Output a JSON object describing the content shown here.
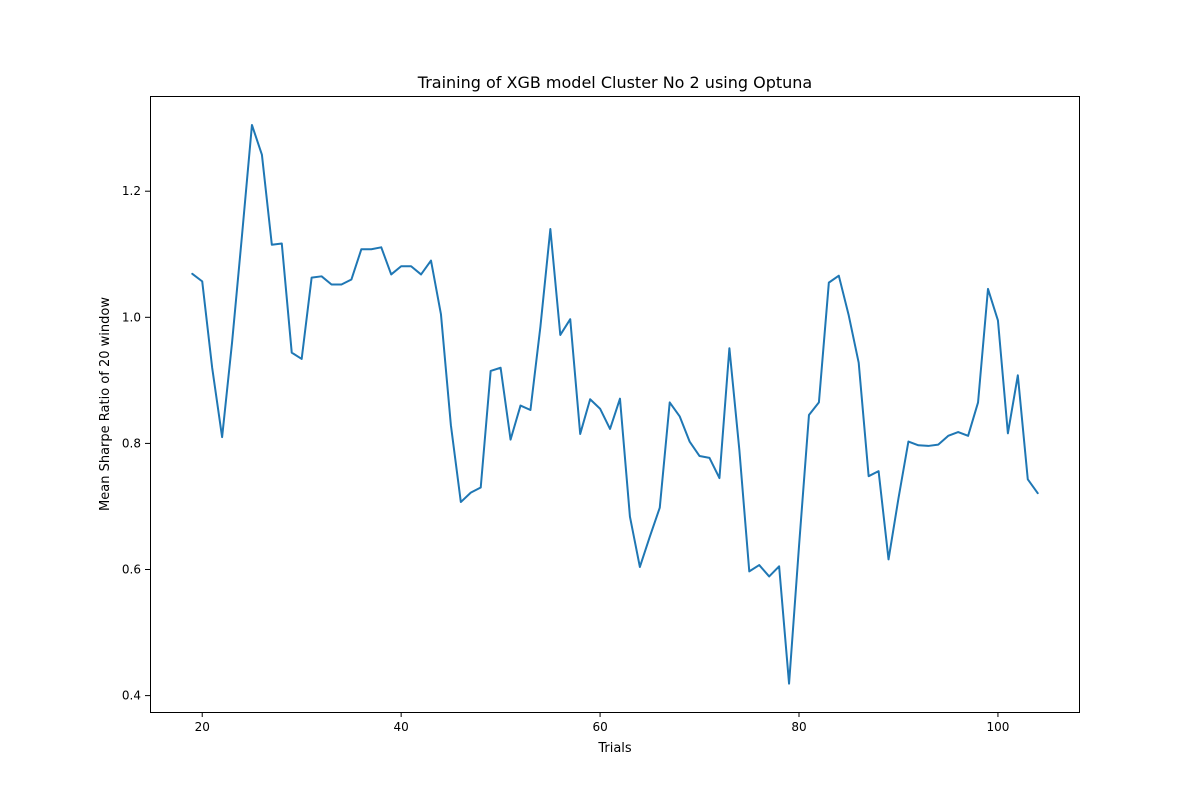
{
  "chart_data": {
    "type": "line",
    "title": "Training of XGB model Cluster No 2 using Optuna",
    "xlabel": "Trials",
    "ylabel": "Mean Sharpe Ratio of 20 window",
    "xlim": [
      14.75,
      108.25
    ],
    "ylim": [
      0.374,
      1.351
    ],
    "xticks": [
      20,
      40,
      60,
      80,
      100
    ],
    "yticks": [
      0.4,
      0.6,
      0.8,
      1.0,
      1.2
    ],
    "xtick_labels": [
      "20",
      "40",
      "60",
      "80",
      "100"
    ],
    "ytick_labels": [
      "0.4",
      "0.6",
      "0.8",
      "1.0",
      "1.2"
    ],
    "grid": false,
    "legend": "none",
    "series": [
      {
        "color": "#1f77b4",
        "x": [
          19,
          20,
          21,
          22,
          23,
          24,
          25,
          26,
          27,
          28,
          29,
          30,
          31,
          32,
          33,
          34,
          35,
          36,
          37,
          38,
          39,
          40,
          41,
          42,
          43,
          44,
          45,
          46,
          47,
          48,
          49,
          50,
          51,
          52,
          53,
          54,
          55,
          56,
          57,
          58,
          59,
          60,
          61,
          62,
          63,
          64,
          65,
          66,
          67,
          68,
          69,
          70,
          71,
          72,
          73,
          74,
          75,
          76,
          77,
          78,
          79,
          80,
          81,
          82,
          83,
          84,
          85,
          86,
          87,
          88,
          89,
          90,
          91,
          92,
          93,
          94,
          95,
          96,
          97,
          98,
          99,
          100,
          101,
          102,
          103,
          104
        ],
        "values": [
          1.069,
          1.057,
          0.92,
          0.81,
          0.96,
          1.13,
          1.305,
          1.258,
          1.115,
          1.117,
          0.944,
          0.934,
          1.063,
          1.065,
          1.052,
          1.052,
          1.06,
          1.108,
          1.108,
          1.111,
          1.068,
          1.081,
          1.081,
          1.068,
          1.09,
          1.005,
          0.829,
          0.707,
          0.722,
          0.73,
          0.915,
          0.92,
          0.806,
          0.86,
          0.853,
          0.985,
          1.14,
          0.972,
          0.997,
          0.815,
          0.87,
          0.855,
          0.823,
          0.871,
          0.684,
          0.604,
          0.652,
          0.698,
          0.865,
          0.843,
          0.803,
          0.78,
          0.777,
          0.745,
          0.951,
          0.79,
          0.597,
          0.607,
          0.589,
          0.605,
          0.419,
          0.637,
          0.845,
          0.865,
          1.055,
          1.066,
          1.003,
          0.928,
          0.748,
          0.756,
          0.616,
          0.713,
          0.803,
          0.797,
          0.796,
          0.798,
          0.812,
          0.818,
          0.812,
          0.865,
          1.045,
          0.995,
          0.816,
          0.908,
          0.743,
          0.721
        ]
      }
    ]
  }
}
